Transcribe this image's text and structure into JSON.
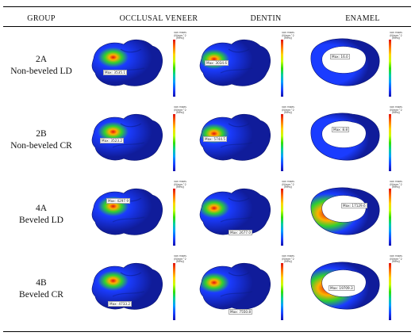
{
  "headers": {
    "group": "GROUP",
    "occlusal": "OCCLUSAL VENEER",
    "dentin": "DENTIN",
    "enamel": "ENAMEL"
  },
  "rows": [
    {
      "code": "2A",
      "desc": "Non-beveled LD",
      "veneer_max": "Max: 3535.1",
      "dentin_max": "Max: 3034.6",
      "enamel_max": "Max: 16.0"
    },
    {
      "code": "2B",
      "desc": "Non-beveled CR",
      "veneer_max": "Max: 3523.2",
      "dentin_max": "Max: 5744.5",
      "enamel_max": "Max: 8.8"
    },
    {
      "code": "4A",
      "desc": "Beveled LD",
      "veneer_max": "Max: 4297.9",
      "dentin_max": "Max: 2677.0",
      "enamel_max": "Max: 17129.6"
    },
    {
      "code": "4B",
      "desc": "Beveled CR",
      "veneer_max": "Max: 4733.2",
      "dentin_max": "Max: 7550.8",
      "enamel_max": "Max: 19709.3"
    }
  ],
  "legend": {
    "title1": "von Mises",
    "title2": "(N/mm^2 (MPa))"
  },
  "colors": {
    "hot": "#e01010",
    "warm": "#ffb000",
    "green": "#30d030",
    "blue": "#1a3cff",
    "deep": "#101c9a"
  }
}
